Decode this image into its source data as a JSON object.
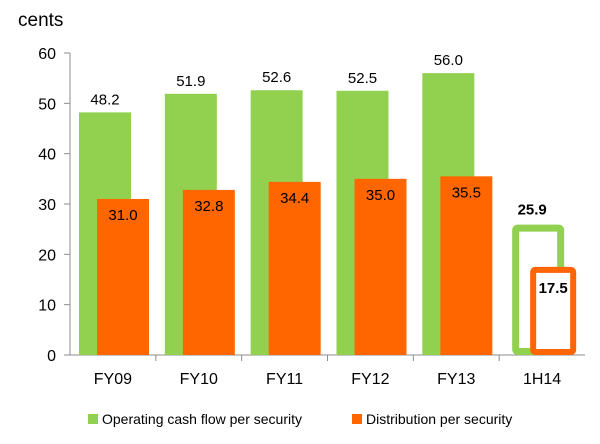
{
  "chart_data": {
    "type": "bar",
    "unit_label": "cents",
    "categories": [
      "FY09",
      "FY10",
      "FY11",
      "FY12",
      "FY13",
      "1H14"
    ],
    "ylim": [
      0,
      60
    ],
    "yticks": [
      0,
      10,
      20,
      30,
      40,
      50,
      60
    ],
    "grid": false,
    "legend_position": "bottom",
    "series": [
      {
        "name": "Operating cash flow per security",
        "color": "#92D050",
        "values": [
          48.2,
          51.9,
          52.6,
          52.5,
          56.0,
          25.9
        ],
        "labels": [
          "48.2",
          "51.9",
          "52.6",
          "52.5",
          "56.0",
          "25.9"
        ]
      },
      {
        "name": "Distribution per security",
        "color": "#FF6600",
        "values": [
          31.0,
          32.8,
          34.4,
          35.0,
          35.5,
          17.5
        ],
        "labels": [
          "31.0",
          "32.8",
          "34.4",
          "35.0",
          "35.5",
          "17.5"
        ]
      }
    ],
    "outlined_categories": [
      "1H14"
    ]
  }
}
